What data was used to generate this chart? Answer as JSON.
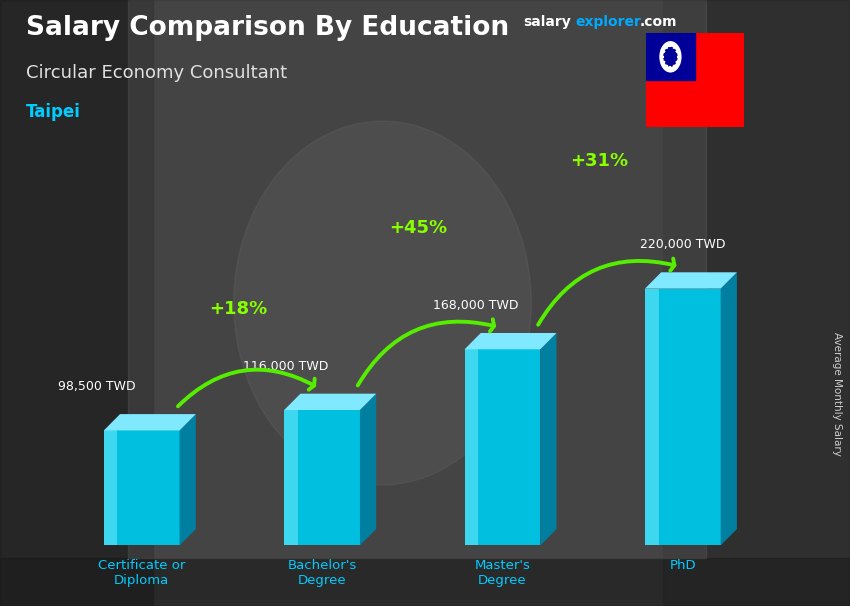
{
  "title": "Salary Comparison By Education",
  "subtitle": "Circular Economy Consultant",
  "city": "Taipei",
  "ylabel": "Average Monthly Salary",
  "categories": [
    "Certificate or\nDiploma",
    "Bachelor's\nDegree",
    "Master's\nDegree",
    "PhD"
  ],
  "values": [
    98500,
    116000,
    168000,
    220000
  ],
  "labels": [
    "98,500 TWD",
    "116,000 TWD",
    "168,000 TWD",
    "220,000 TWD"
  ],
  "pct_changes": [
    "+18%",
    "+45%",
    "+31%"
  ],
  "bar_color_main": "#00bfdf",
  "bar_color_side": "#007fa0",
  "bar_color_top": "#80e8ff",
  "bar_color_shine": "#40d8f8",
  "arrow_color": "#55ee00",
  "title_color": "#ffffff",
  "subtitle_color": "#e0e0e0",
  "city_color": "#00ccff",
  "label_color": "#ffffff",
  "pct_color": "#88ff00",
  "ylabel_color": "#cccccc",
  "bg_color": "#555555",
  "watermark_salary_color": "#ffffff",
  "watermark_explorer_color": "#00aaff",
  "watermark_com_color": "#ffffff",
  "flag_blue": "#000099",
  "flag_red": "#ff0000",
  "flag_white": "#ffffff"
}
